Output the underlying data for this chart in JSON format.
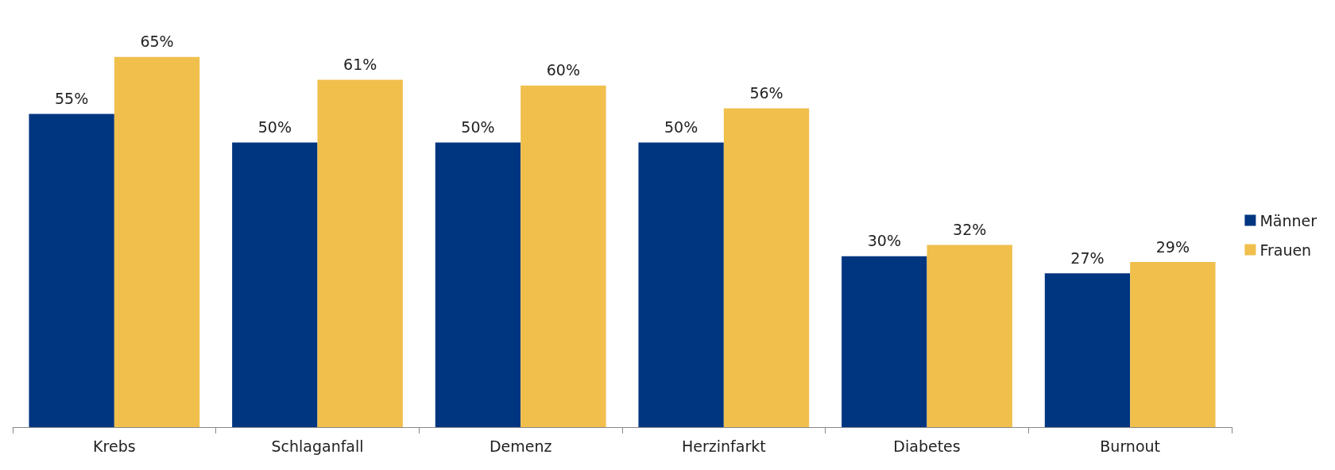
{
  "chart_data": {
    "type": "bar",
    "categories": [
      "Krebs",
      "Schlaganfall",
      "Demenz",
      "Herzinfarkt",
      "Diabetes",
      "Burnout"
    ],
    "series": [
      {
        "name": "Männer",
        "color": "#003580",
        "values": [
          55,
          50,
          50,
          50,
          30,
          27
        ],
        "value_labels": [
          "55%",
          "50%",
          "50%",
          "50%",
          "30%",
          "27%"
        ]
      },
      {
        "name": "Frauen",
        "color": "#f0bf4c",
        "values": [
          65,
          61,
          60,
          56,
          32,
          29
        ],
        "value_labels": [
          "65%",
          "61%",
          "60%",
          "56%",
          "32%",
          "29%"
        ]
      }
    ],
    "legend": "right",
    "grid": false
  }
}
